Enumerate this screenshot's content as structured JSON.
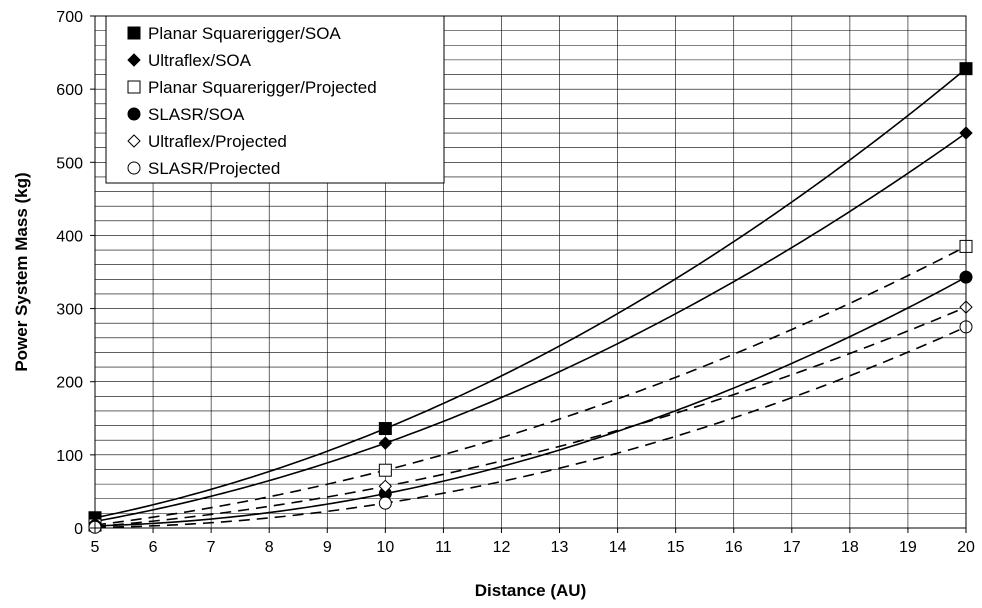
{
  "chart_data": {
    "type": "line",
    "title": "",
    "xlabel": "Distance (AU)",
    "ylabel": "Power System Mass (kg)",
    "xlim": [
      5,
      20
    ],
    "ylim": [
      0,
      700
    ],
    "x_ticks": [
      5,
      6,
      7,
      8,
      9,
      10,
      11,
      12,
      13,
      14,
      15,
      16,
      17,
      18,
      19,
      20
    ],
    "y_ticks": [
      0,
      100,
      200,
      300,
      400,
      500,
      600,
      700
    ],
    "y_minor_step": 20,
    "grid": true,
    "legend_position": "top-left",
    "series": [
      {
        "name": "Planar Squarerigger/SOA",
        "marker": "filled-square",
        "line": "solid",
        "points": [
          [
            5,
            14
          ],
          [
            10,
            136
          ],
          [
            20,
            628
          ]
        ]
      },
      {
        "name": "Ultraflex/SOA",
        "marker": "filled-diamond",
        "line": "solid",
        "points": [
          [
            5,
            9
          ],
          [
            10,
            116
          ],
          [
            20,
            540
          ]
        ]
      },
      {
        "name": "Planar Squarerigger/Projected",
        "marker": "open-square",
        "line": "dashed",
        "points": [
          [
            5,
            4
          ],
          [
            10,
            79
          ],
          [
            20,
            385
          ]
        ]
      },
      {
        "name": "SLASR/SOA",
        "marker": "filled-circle",
        "line": "solid",
        "points": [
          [
            5,
            3
          ],
          [
            10,
            47
          ],
          [
            20,
            343
          ]
        ]
      },
      {
        "name": "Ultraflex/Projected",
        "marker": "open-diamond",
        "line": "dashed",
        "points": [
          [
            5,
            2
          ],
          [
            10,
            57
          ],
          [
            20,
            302
          ]
        ]
      },
      {
        "name": "SLASR/Projected",
        "marker": "open-circle",
        "line": "dashed",
        "points": [
          [
            5,
            1
          ],
          [
            10,
            34
          ],
          [
            20,
            275
          ]
        ]
      }
    ]
  }
}
